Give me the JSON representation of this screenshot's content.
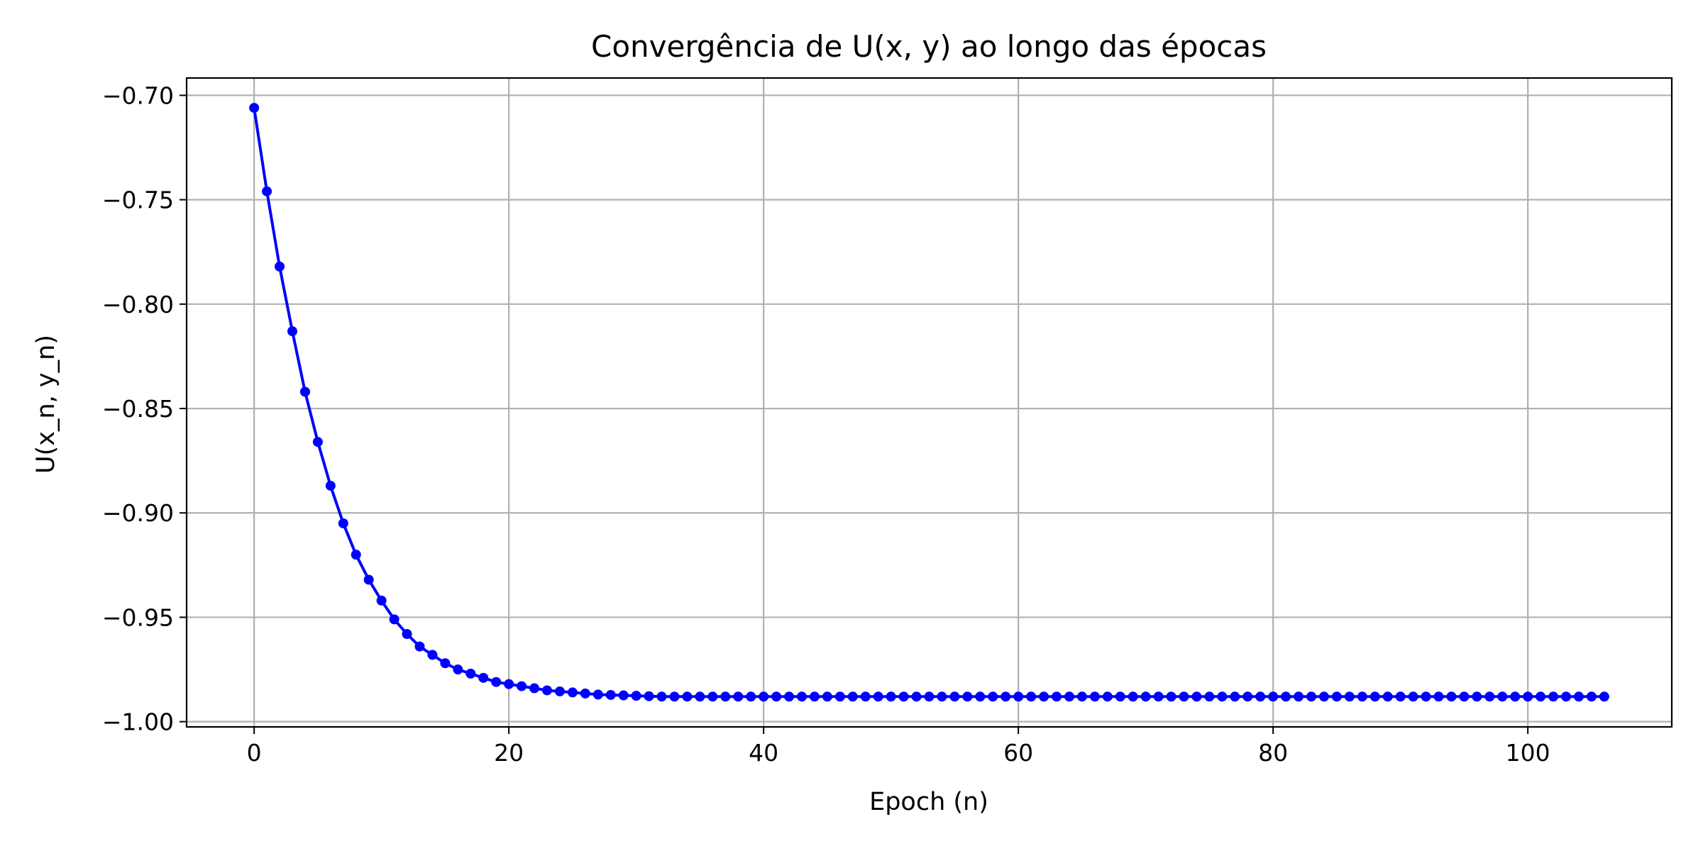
{
  "chart_data": {
    "type": "line",
    "title": "Convergência de U(x, y) ao longo das épocas",
    "xlabel": "Epoch (n)",
    "ylabel": "U(x_n, y_n)",
    "xlim": [
      -5.3,
      111.3
    ],
    "ylim": [
      -1.0025,
      -0.6917
    ],
    "x_ticks": [
      0,
      20,
      40,
      60,
      80,
      100
    ],
    "x_tick_labels": [
      "0",
      "20",
      "40",
      "60",
      "80",
      "100"
    ],
    "y_ticks": [
      -0.7,
      -0.75,
      -0.8,
      -0.85,
      -0.9,
      -0.95,
      -1.0
    ],
    "y_tick_labels": [
      "−0.70",
      "−0.75",
      "−0.80",
      "−0.85",
      "−0.90",
      "−0.95",
      "−1.00"
    ],
    "grid": true,
    "series": [
      {
        "color": "#0000ff",
        "marker": "circle",
        "x": [
          0,
          1,
          2,
          3,
          4,
          5,
          6,
          7,
          8,
          9,
          10,
          11,
          12,
          13,
          14,
          15,
          16,
          17,
          18,
          19,
          20,
          21,
          22,
          23,
          24,
          25,
          26,
          27,
          28,
          29,
          30,
          31,
          32,
          33,
          34,
          35,
          36,
          37,
          38,
          39,
          40,
          41,
          42,
          43,
          44,
          45,
          46,
          47,
          48,
          49,
          50,
          51,
          52,
          53,
          54,
          55,
          56,
          57,
          58,
          59,
          60,
          61,
          62,
          63,
          64,
          65,
          66,
          67,
          68,
          69,
          70,
          71,
          72,
          73,
          74,
          75,
          76,
          77,
          78,
          79,
          80,
          81,
          82,
          83,
          84,
          85,
          86,
          87,
          88,
          89,
          90,
          91,
          92,
          93,
          94,
          95,
          96,
          97,
          98,
          99,
          100,
          101,
          102,
          103,
          104,
          105,
          106
        ],
        "y": [
          -0.706,
          -0.746,
          -0.782,
          -0.813,
          -0.842,
          -0.866,
          -0.887,
          -0.905,
          -0.92,
          -0.932,
          -0.942,
          -0.951,
          -0.958,
          -0.964,
          -0.968,
          -0.972,
          -0.975,
          -0.977,
          -0.979,
          -0.981,
          -0.982,
          -0.983,
          -0.984,
          -0.985,
          -0.9855,
          -0.986,
          -0.9865,
          -0.987,
          -0.9872,
          -0.9874,
          -0.9876,
          -0.9878,
          -0.988,
          -0.988,
          -0.988,
          -0.988,
          -0.988,
          -0.988,
          -0.988,
          -0.988,
          -0.988,
          -0.988,
          -0.988,
          -0.988,
          -0.988,
          -0.988,
          -0.988,
          -0.988,
          -0.988,
          -0.988,
          -0.988,
          -0.988,
          -0.988,
          -0.988,
          -0.988,
          -0.988,
          -0.988,
          -0.988,
          -0.988,
          -0.988,
          -0.988,
          -0.988,
          -0.988,
          -0.988,
          -0.988,
          -0.988,
          -0.988,
          -0.988,
          -0.988,
          -0.988,
          -0.988,
          -0.988,
          -0.988,
          -0.988,
          -0.988,
          -0.988,
          -0.988,
          -0.988,
          -0.988,
          -0.988,
          -0.988,
          -0.988,
          -0.988,
          -0.988,
          -0.988,
          -0.988,
          -0.988,
          -0.988,
          -0.988,
          -0.988,
          -0.988,
          -0.988,
          -0.988,
          -0.988,
          -0.988,
          -0.988,
          -0.988,
          -0.988,
          -0.988,
          -0.988,
          -0.988,
          -0.988,
          -0.988,
          -0.988,
          -0.988,
          -0.988,
          -0.988
        ]
      }
    ]
  }
}
